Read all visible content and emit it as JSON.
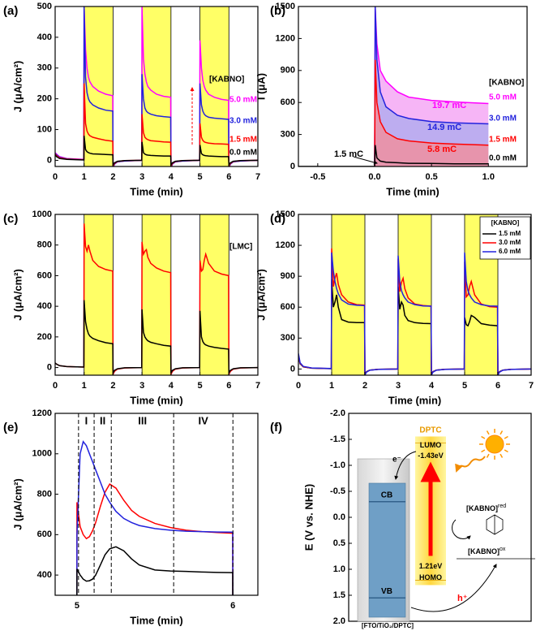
{
  "chart_data": [
    {
      "label": "(a)",
      "type": "line",
      "xlabel": "Time (min)",
      "ylabel": "J (μA/cm²)",
      "legend_title": "[KABNO]",
      "xlim": [
        0,
        7
      ],
      "ylim": [
        -20,
        500
      ],
      "xticks": [
        0,
        1,
        2,
        3,
        4,
        5,
        6,
        7
      ],
      "yticks": [
        0,
        100,
        200,
        300,
        400,
        500
      ],
      "light_on": [
        [
          1,
          2
        ],
        [
          3,
          4
        ],
        [
          5,
          6
        ]
      ],
      "shade_color": "#ffff66",
      "x": [
        0,
        0.05,
        0.15,
        0.4,
        0.99,
        1,
        1.05,
        1.1,
        1.15,
        1.2,
        1.3,
        1.5,
        1.75,
        1.99,
        2,
        2.05,
        2.15,
        2.4,
        2.99,
        3,
        3.05,
        3.1,
        3.15,
        3.2,
        3.3,
        3.5,
        3.75,
        3.99,
        4,
        4.05,
        4.15,
        4.4,
        4.99,
        5,
        5.05,
        5.1,
        5.15,
        5.2,
        5.3,
        5.5,
        5.75,
        5.99,
        6,
        6.05,
        6.15,
        6.4,
        7
      ],
      "series": [
        {
          "name": "5.0 mM",
          "color": "#ff00ff",
          "values": [
            25,
            20,
            12,
            6,
            3,
            500,
            360,
            300,
            270,
            255,
            240,
            225,
            215,
            210,
            -25,
            -12,
            -5,
            -2,
            0,
            500,
            330,
            280,
            255,
            240,
            228,
            215,
            208,
            205,
            -25,
            -12,
            -5,
            -2,
            0,
            390,
            300,
            260,
            240,
            228,
            215,
            205,
            198,
            195,
            -25,
            -12,
            -5,
            -2,
            0
          ]
        },
        {
          "name": "3.0 mM",
          "color": "#2222dd",
          "values": [
            22,
            18,
            10,
            5,
            2,
            500,
            270,
            220,
            200,
            190,
            180,
            170,
            163,
            160,
            -25,
            -12,
            -5,
            -2,
            0,
            280,
            200,
            170,
            160,
            155,
            150,
            145,
            142,
            140,
            -25,
            -12,
            -5,
            -2,
            0,
            250,
            180,
            160,
            150,
            145,
            140,
            137,
            135,
            133,
            -25,
            -12,
            -5,
            -2,
            0
          ]
        },
        {
          "name": "1.5 mM",
          "color": "#ff0000",
          "values": [
            20,
            15,
            8,
            4,
            2,
            250,
            120,
            95,
            85,
            80,
            75,
            70,
            65,
            62,
            -20,
            -10,
            -4,
            -1,
            0,
            150,
            90,
            75,
            70,
            67,
            64,
            62,
            60,
            59,
            -20,
            -10,
            -4,
            -1,
            0,
            120,
            75,
            65,
            60,
            58,
            56,
            54,
            53,
            52,
            -20,
            -10,
            -4,
            -1,
            0
          ]
        },
        {
          "name": "0.0 mM",
          "color": "#000000",
          "values": [
            18,
            12,
            6,
            3,
            1,
            80,
            35,
            28,
            25,
            23,
            21,
            20,
            19,
            18,
            -15,
            -8,
            -3,
            -1,
            0,
            60,
            25,
            20,
            18,
            17,
            16,
            15,
            14,
            14,
            -15,
            -8,
            -3,
            -1,
            0,
            50,
            22,
            18,
            16,
            15,
            14,
            13,
            12,
            12,
            -15,
            -8,
            -3,
            -1,
            0
          ]
        }
      ]
    },
    {
      "label": "(b)",
      "type": "line",
      "xlabel": "Time (min)",
      "ylabel": "I (μA)",
      "legend_title": "[KABNO]",
      "xlim": [
        -0.67,
        1.34
      ],
      "ylim": [
        0,
        1500
      ],
      "xticks": [
        -0.5,
        {
          "value": 0,
          "label": "0.0"
        },
        0.5,
        {
          "value": 1,
          "label": "1.0"
        }
      ],
      "yticks": [
        0,
        300,
        600,
        900,
        1200,
        1500
      ],
      "x": [
        -0.67,
        0,
        0.005,
        0.02,
        0.05,
        0.1,
        0.2,
        0.3,
        0.5,
        0.7,
        1.0
      ],
      "series": [
        {
          "name": "5.0 mM",
          "color": "#ff00ff",
          "fill": "#f5a8f5",
          "charge": "19.7 mC",
          "values": [
            null,
            0,
            1500,
            1150,
            900,
            800,
            700,
            650,
            620,
            605,
            590
          ]
        },
        {
          "name": "3.0 mM",
          "color": "#2222dd",
          "fill": "#b3acef",
          "charge": "14.9 mC",
          "values": [
            null,
            0,
            1500,
            1000,
            700,
            560,
            480,
            450,
            420,
            410,
            400
          ]
        },
        {
          "name": "1.5 mM",
          "color": "#ff0000",
          "fill": "#ee8fa0",
          "charge": "5.8 mC",
          "values": [
            null,
            0,
            1000,
            600,
            420,
            320,
            260,
            240,
            220,
            210,
            200
          ]
        },
        {
          "name": "0.0 mM",
          "color": "#000000",
          "charge": "1.5 mC",
          "values": [
            0,
            0,
            200,
            80,
            50,
            40,
            35,
            30,
            28,
            25,
            25
          ]
        }
      ]
    },
    {
      "label": "(c)",
      "type": "line",
      "xlabel": "Time (min)",
      "ylabel": "J (μA/cm²)",
      "annotation": "[LMC]",
      "xlim": [
        0,
        7
      ],
      "ylim": [
        -50,
        1000
      ],
      "xticks": [
        0,
        1,
        2,
        3,
        4,
        5,
        6,
        7
      ],
      "yticks": [
        0,
        200,
        400,
        600,
        800,
        1000
      ],
      "light_on": [
        [
          1,
          2
        ],
        [
          3,
          4
        ],
        [
          5,
          6
        ]
      ],
      "shade_color": "#ffff66",
      "x": [
        0,
        0.05,
        0.15,
        0.4,
        0.99,
        1,
        1.05,
        1.1,
        1.15,
        1.2,
        1.3,
        1.5,
        1.75,
        1.99,
        2,
        2.05,
        2.15,
        2.4,
        2.99,
        3,
        3.05,
        3.1,
        3.15,
        3.2,
        3.3,
        3.5,
        3.75,
        3.99,
        4,
        4.05,
        4.15,
        4.4,
        4.99,
        5,
        5.05,
        5.1,
        5.15,
        5.2,
        5.3,
        5.5,
        5.75,
        5.99,
        6,
        6.05,
        6.15,
        6.4,
        7
      ],
      "series": [
        {
          "color": "#ff0000",
          "values": [
            30,
            22,
            12,
            6,
            3,
            940,
            790,
            760,
            800,
            760,
            700,
            660,
            640,
            630,
            -45,
            -25,
            -10,
            -3,
            0,
            820,
            740,
            760,
            770,
            720,
            680,
            650,
            630,
            620,
            -45,
            -25,
            -10,
            -3,
            0,
            700,
            630,
            640,
            700,
            740,
            680,
            630,
            610,
            600,
            -45,
            -25,
            -10,
            -3,
            0
          ]
        },
        {
          "color": "#000000",
          "values": [
            30,
            22,
            12,
            6,
            3,
            440,
            300,
            250,
            220,
            205,
            190,
            175,
            162,
            155,
            -35,
            -18,
            -8,
            -2,
            0,
            380,
            230,
            200,
            185,
            175,
            165,
            155,
            145,
            140,
            -35,
            -18,
            -8,
            -2,
            0,
            370,
            200,
            170,
            155,
            148,
            140,
            132,
            125,
            120,
            -35,
            -18,
            -8,
            -2,
            0
          ]
        }
      ]
    },
    {
      "label": "(d)",
      "type": "line",
      "xlabel": "Time (min)",
      "ylabel": "J (μA/cm²)",
      "legend_title": "[KABNO]",
      "xlim": [
        0,
        7
      ],
      "ylim": [
        -60,
        1500
      ],
      "xticks": [
        0,
        1,
        2,
        3,
        4,
        5,
        6,
        7
      ],
      "yticks": [
        0,
        300,
        600,
        900,
        1200,
        1500
      ],
      "light_on": [
        [
          1,
          2
        ],
        [
          3,
          4
        ],
        [
          5,
          6
        ]
      ],
      "shade_color": "#ffff66",
      "x": [
        0,
        0.05,
        0.15,
        0.4,
        0.99,
        1,
        1.05,
        1.1,
        1.15,
        1.2,
        1.3,
        1.5,
        1.75,
        1.99,
        2,
        2.05,
        2.15,
        2.4,
        2.99,
        3,
        3.05,
        3.1,
        3.15,
        3.2,
        3.3,
        3.5,
        3.75,
        3.99,
        4,
        4.05,
        4.15,
        4.4,
        4.99,
        5,
        5.05,
        5.1,
        5.15,
        5.2,
        5.3,
        5.5,
        5.75,
        5.99,
        6,
        6.05,
        6.15,
        6.4,
        7
      ],
      "series": [
        {
          "name": "1.5 mM",
          "color": "#000000",
          "values": [
            120,
            50,
            20,
            8,
            3,
            870,
            600,
            650,
            720,
            600,
            480,
            455,
            450,
            450,
            -50,
            -25,
            -10,
            -3,
            0,
            800,
            580,
            650,
            620,
            520,
            470,
            450,
            442,
            440,
            -50,
            -25,
            -10,
            -3,
            0,
            500,
            430,
            420,
            460,
            520,
            500,
            440,
            425,
            420,
            -50,
            -25,
            -10,
            -3,
            0
          ]
        },
        {
          "name": "3.0 mM",
          "color": "#ff0000",
          "values": [
            140,
            55,
            22,
            9,
            4,
            1170,
            800,
            880,
            930,
            820,
            720,
            650,
            625,
            620,
            -55,
            -28,
            -11,
            -3,
            0,
            1070,
            750,
            840,
            880,
            780,
            690,
            630,
            615,
            610,
            -55,
            -28,
            -11,
            -3,
            0,
            1040,
            700,
            720,
            800,
            850,
            720,
            630,
            605,
            600,
            -55,
            -28,
            -11,
            -3,
            0
          ]
        },
        {
          "name": "6.0 mM",
          "color": "#2222dd",
          "values": [
            150,
            60,
            25,
            10,
            5,
            1130,
            950,
            850,
            780,
            730,
            670,
            630,
            618,
            615,
            -60,
            -30,
            -12,
            -4,
            0,
            1100,
            850,
            760,
            720,
            690,
            650,
            625,
            612,
            610,
            -60,
            -30,
            -12,
            -4,
            0,
            1130,
            850,
            760,
            720,
            690,
            650,
            625,
            612,
            610,
            -60,
            -30,
            -12,
            -4,
            0
          ]
        }
      ]
    },
    {
      "label": "(e)",
      "type": "line",
      "xlabel": "Time (min)",
      "ylabel": "J (μA/cm²)",
      "xlim": [
        4.86,
        6.16
      ],
      "ylim": [
        300,
        1200
      ],
      "xticks": [
        5,
        6
      ],
      "yticks": [
        400,
        600,
        800,
        1000,
        1200
      ],
      "vlines": [
        5.01,
        5.11,
        5.22,
        5.62,
        6.0
      ],
      "region_labels": [
        "I",
        "II",
        "III",
        "IV"
      ],
      "x": [
        4.999,
        5.0,
        5.02,
        5.04,
        5.06,
        5.08,
        5.1,
        5.12,
        5.15,
        5.18,
        5.21,
        5.25,
        5.3,
        5.35,
        5.4,
        5.5,
        5.6,
        5.7,
        5.8,
        5.9,
        5.999,
        6.0
      ],
      "series": [
        {
          "color": "#ff0000",
          "values": [
            0,
            760,
            640,
            600,
            580,
            590,
            620,
            660,
            740,
            810,
            850,
            830,
            770,
            720,
            690,
            655,
            635,
            622,
            615,
            610,
            607,
            0
          ]
        },
        {
          "color": "#2222dd",
          "values": [
            0,
            600,
            1000,
            1060,
            1040,
            1000,
            960,
            920,
            860,
            800,
            760,
            715,
            680,
            660,
            645,
            630,
            622,
            617,
            615,
            613,
            612,
            0
          ]
        },
        {
          "color": "#000000",
          "values": [
            0,
            430,
            400,
            380,
            370,
            372,
            380,
            400,
            450,
            500,
            530,
            540,
            520,
            480,
            450,
            425,
            420,
            418,
            415,
            413,
            412,
            0
          ]
        }
      ]
    },
    {
      "label": "(f)",
      "type": "diagram",
      "ylabel": "E (V vs. NHE)",
      "ylim": [
        -2,
        2
      ],
      "inverted": true,
      "yticks": [
        {
          "value": -2,
          "label": "-2.0"
        },
        -1.5,
        {
          "value": -1,
          "label": "-1.0"
        },
        -0.5,
        {
          "value": 0,
          "label": "0.0"
        },
        0.5,
        {
          "value": 1,
          "label": "1.0"
        },
        1.5,
        {
          "value": 2,
          "label": "2.0"
        }
      ],
      "cb": {
        "value": -0.3,
        "label": "CB"
      },
      "vb": {
        "value": 1.55,
        "label": "VB"
      },
      "lumo": {
        "value": -1.43,
        "label": "-1.43eV"
      },
      "homo": {
        "value": 1.21,
        "label": "1.21eV"
      },
      "texts": {
        "dptc": "DPTC",
        "lumo": "LUMO",
        "homo": "HOMO",
        "electron": "e⁻",
        "hole": "h⁺",
        "electrode": "[FTO/TiO₂/DPTC]",
        "red": {
          "base": "[KABNO]",
          "sup": "red"
        },
        "ox": {
          "base": "[KABNO]",
          "sup": "ox"
        }
      }
    }
  ]
}
